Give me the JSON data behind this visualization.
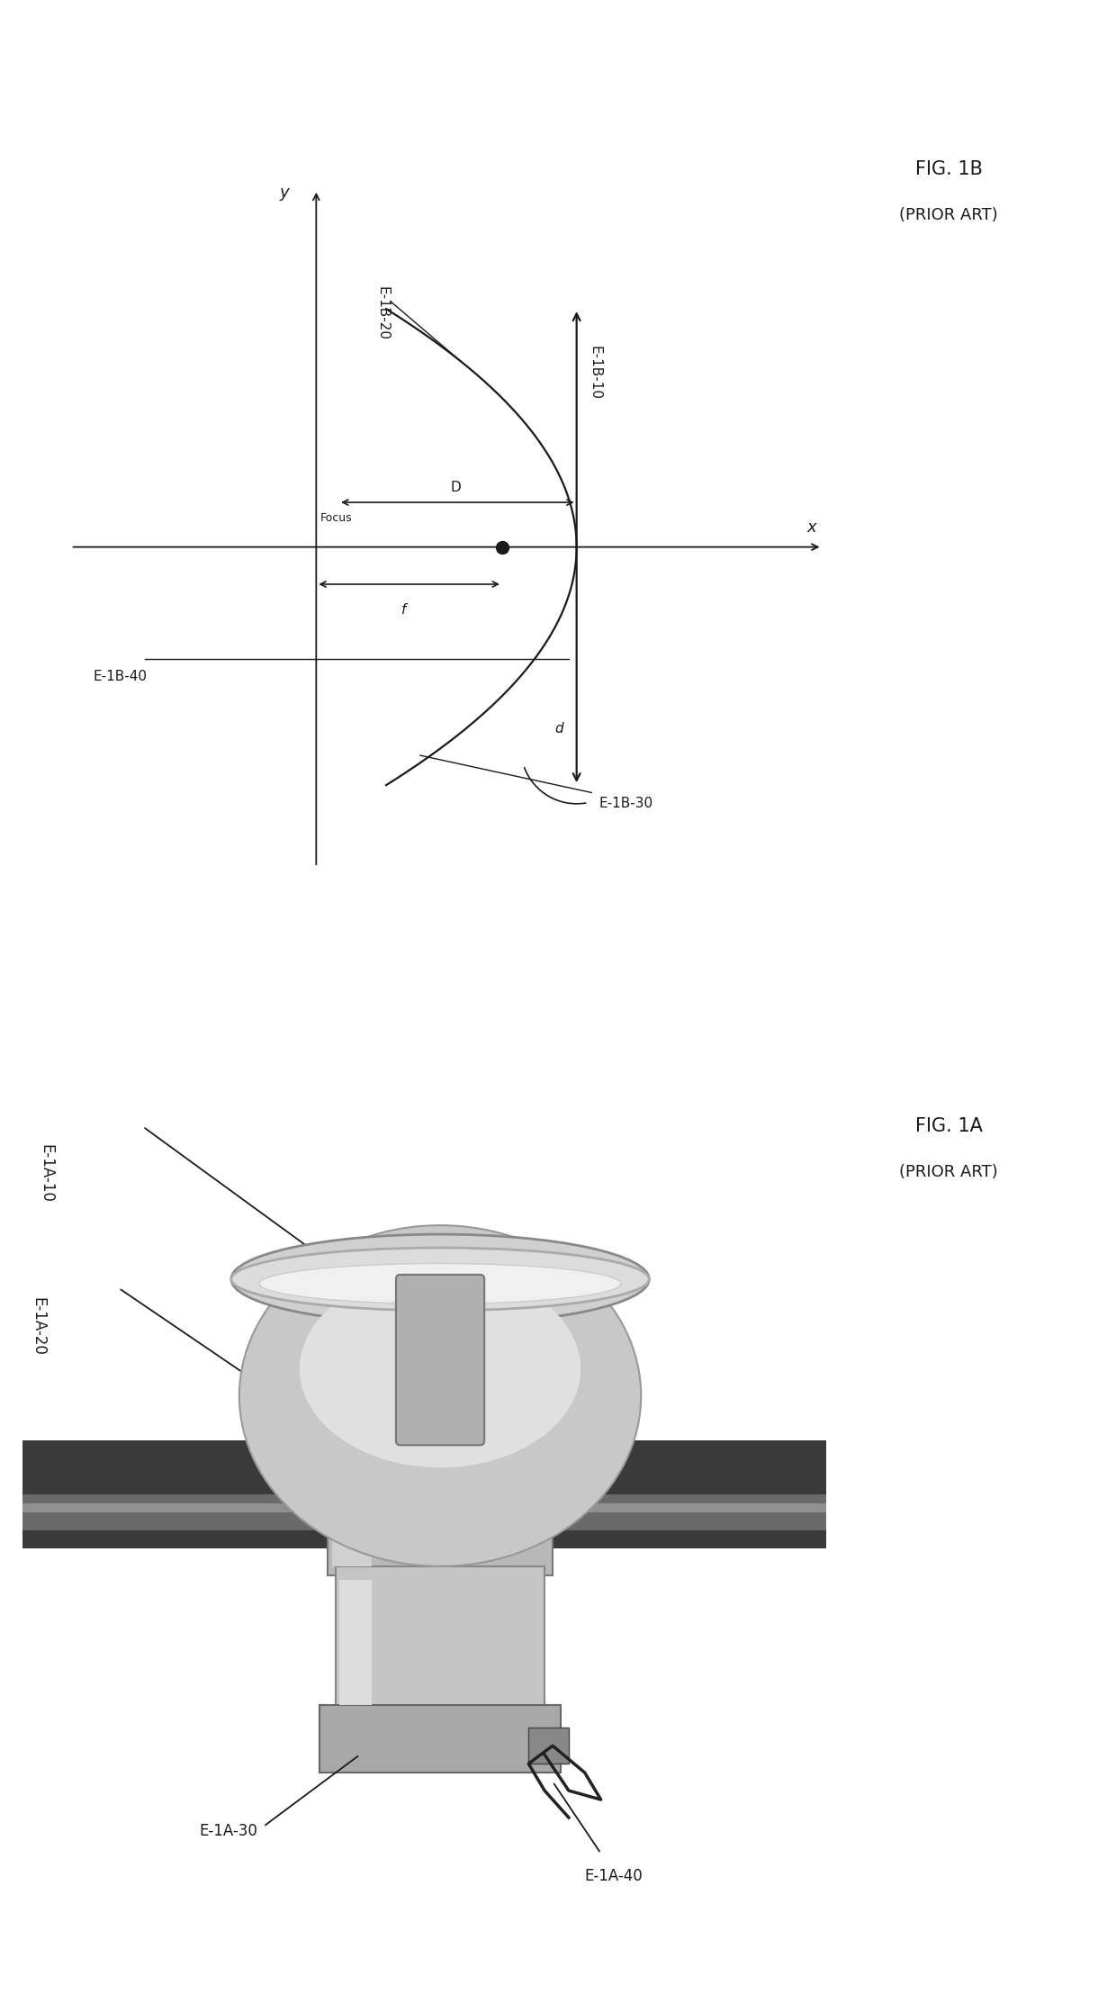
{
  "bg_color": "#ffffff",
  "fig_width": 12.4,
  "fig_height": 22.15,
  "fig1b": {
    "title": "FIG. 1B",
    "subtitle": "(PRIOR ART)",
    "x_label": "x",
    "y_label": "y",
    "label_E1B10": "E-1B-10",
    "label_E1B20": "E-1B-20",
    "label_E1B30": "E-1B-30",
    "label_E1B40": "E-1B-40",
    "label_focus": "Focus",
    "label_f": "f",
    "label_D": "D",
    "label_d": "d"
  },
  "fig1a": {
    "title": "FIG. 1A",
    "subtitle": "(PRIOR ART)",
    "label_E1A10": "E-1A-10",
    "label_E1A20": "E-1A-20",
    "label_E1A30": "E-1A-30",
    "label_E1A40": "E-1A-40"
  }
}
